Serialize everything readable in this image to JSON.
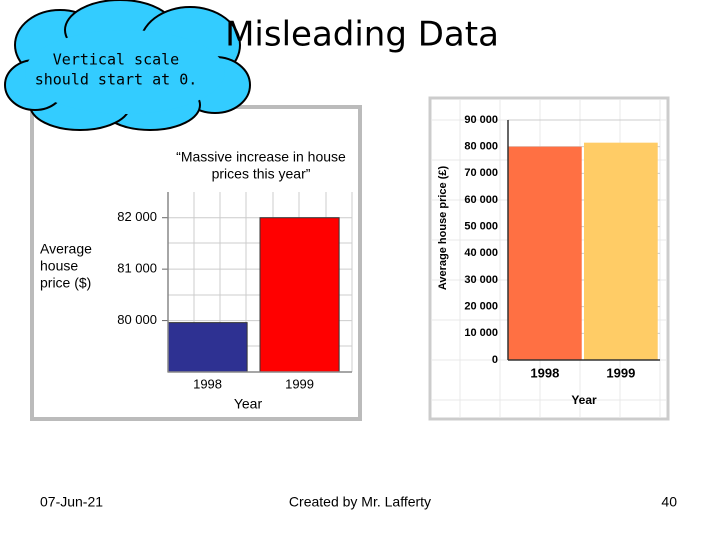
{
  "slide": {
    "title": "Misleading Data",
    "callout": [
      "Vertical scale",
      "should start at 0."
    ],
    "date": "07-Jun-21",
    "footer": "Created by Mr. Lafferty",
    "page": "40"
  },
  "chart_data": [
    {
      "type": "bar",
      "title": [
        "“Massive increase in house",
        "prices this year”"
      ],
      "ylabel": [
        "Average",
        "house",
        "price ($)"
      ],
      "xlabel": "Year",
      "categories": [
        "1998",
        "1999"
      ],
      "values": [
        79960,
        82000
      ],
      "colors": [
        "#2e3192",
        "#ff0000"
      ],
      "ylim": [
        79000,
        82500
      ],
      "yticks": [
        {
          "value": 80000,
          "label": "80 000"
        },
        {
          "value": 81000,
          "label": "81 000"
        },
        {
          "value": 82000,
          "label": "82 000"
        }
      ],
      "grid": true
    },
    {
      "type": "bar",
      "ylabel": "Average house price (£)",
      "xlabel": "Year",
      "categories": [
        "1998",
        "1999"
      ],
      "values": [
        80000,
        81500
      ],
      "colors": [
        "#ff7043",
        "#ffcc66"
      ],
      "ylim": [
        0,
        90000
      ],
      "yticks": [
        0,
        {
          "value": 10000,
          "label": "10 000"
        },
        {
          "value": 20000,
          "label": "20 000"
        },
        {
          "value": 30000,
          "label": "30 000"
        },
        {
          "value": 40000,
          "label": "40 000"
        },
        {
          "value": 50000,
          "label": "50 000"
        },
        {
          "value": 60000,
          "label": "60 000"
        },
        {
          "value": 70000,
          "label": "70 000"
        },
        {
          "value": 80000,
          "label": "80 000"
        },
        {
          "value": 90000,
          "label": "90 000"
        }
      ],
      "grid": true
    }
  ]
}
